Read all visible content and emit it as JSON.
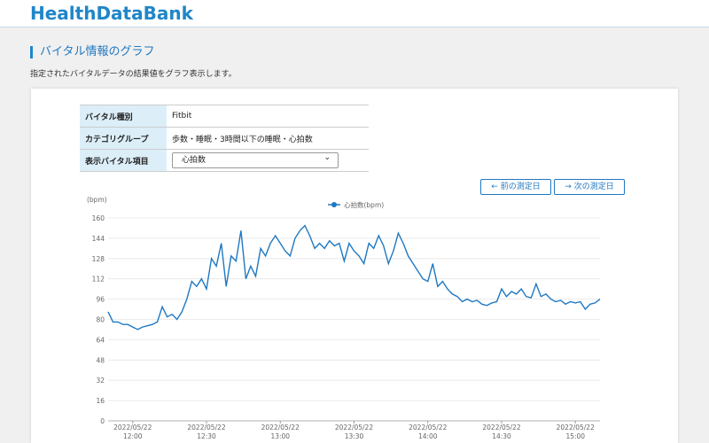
{
  "header": {
    "logo": "HealthDataBank"
  },
  "page": {
    "title": "バイタル情報のグラフ",
    "description": "指定されたバイタルデータの結果値をグラフ表示します。"
  },
  "table": {
    "rows": [
      [
        "バイタル種別",
        "Fitbit"
      ],
      [
        "カテゴリグループ",
        "歩数・睡眠・3時間以下の睡眠・心拍数"
      ],
      [
        "表示バイタル項目",
        "心拍数"
      ]
    ]
  },
  "buttons": {
    "prev": "← 前の測定日",
    "next": "→ 次の測定日"
  },
  "chart_data": {
    "type": "line",
    "y_label": "(bpm)",
    "grid": true,
    "ylim": [
      0,
      160
    ],
    "yticks": [
      0,
      16,
      32,
      48,
      64,
      80,
      96,
      112,
      128,
      144,
      160
    ],
    "xlim": [
      "2022/05/22 11:50",
      "2022/05/22 15:10"
    ],
    "xticks": [
      "2022/05/22 12:00",
      "2022/05/22 12:30",
      "2022/05/22 13:00",
      "2022/05/22 13:30",
      "2022/05/22 14:00",
      "2022/05/22 14:30",
      "2022/05/22 15:00"
    ],
    "x": [
      "2022/05/22 11:50",
      "2022/05/22 11:52",
      "2022/05/22 11:54",
      "2022/05/22 11:56",
      "2022/05/22 11:58",
      "2022/05/22 12:00",
      "2022/05/22 12:02",
      "2022/05/22 12:04",
      "2022/05/22 12:06",
      "2022/05/22 12:08",
      "2022/05/22 12:10",
      "2022/05/22 12:12",
      "2022/05/22 12:14",
      "2022/05/22 12:16",
      "2022/05/22 12:18",
      "2022/05/22 12:20",
      "2022/05/22 12:22",
      "2022/05/22 12:24",
      "2022/05/22 12:26",
      "2022/05/22 12:28",
      "2022/05/22 12:30",
      "2022/05/22 12:32",
      "2022/05/22 12:34",
      "2022/05/22 12:36",
      "2022/05/22 12:38",
      "2022/05/22 12:40",
      "2022/05/22 12:42",
      "2022/05/22 12:44",
      "2022/05/22 12:46",
      "2022/05/22 12:48",
      "2022/05/22 12:50",
      "2022/05/22 12:52",
      "2022/05/22 12:54",
      "2022/05/22 12:56",
      "2022/05/22 12:58",
      "2022/05/22 13:00",
      "2022/05/22 13:02",
      "2022/05/22 13:04",
      "2022/05/22 13:06",
      "2022/05/22 13:08",
      "2022/05/22 13:10",
      "2022/05/22 13:12",
      "2022/05/22 13:14",
      "2022/05/22 13:16",
      "2022/05/22 13:18",
      "2022/05/22 13:20",
      "2022/05/22 13:22",
      "2022/05/22 13:24",
      "2022/05/22 13:26",
      "2022/05/22 13:28",
      "2022/05/22 13:30",
      "2022/05/22 13:32",
      "2022/05/22 13:34",
      "2022/05/22 13:36",
      "2022/05/22 13:38",
      "2022/05/22 13:40",
      "2022/05/22 13:42",
      "2022/05/22 13:44",
      "2022/05/22 13:46",
      "2022/05/22 13:48",
      "2022/05/22 13:50",
      "2022/05/22 13:52",
      "2022/05/22 13:54",
      "2022/05/22 13:56",
      "2022/05/22 13:58",
      "2022/05/22 14:00",
      "2022/05/22 14:02",
      "2022/05/22 14:04",
      "2022/05/22 14:06",
      "2022/05/22 14:08",
      "2022/05/22 14:10",
      "2022/05/22 14:12",
      "2022/05/22 14:14",
      "2022/05/22 14:16",
      "2022/05/22 14:18",
      "2022/05/22 14:20",
      "2022/05/22 14:22",
      "2022/05/22 14:24",
      "2022/05/22 14:26",
      "2022/05/22 14:28",
      "2022/05/22 14:30",
      "2022/05/22 14:32",
      "2022/05/22 14:34",
      "2022/05/22 14:36",
      "2022/05/22 14:38",
      "2022/05/22 14:40",
      "2022/05/22 14:42",
      "2022/05/22 14:44",
      "2022/05/22 14:46",
      "2022/05/22 14:48",
      "2022/05/22 14:50",
      "2022/05/22 14:52",
      "2022/05/22 14:54",
      "2022/05/22 14:56",
      "2022/05/22 14:58",
      "2022/05/22 15:00",
      "2022/05/22 15:02",
      "2022/05/22 15:04",
      "2022/05/22 15:06",
      "2022/05/22 15:08",
      "2022/05/22 15:10"
    ],
    "series": [
      {
        "name": "心拍数(bpm)",
        "color": "#1f78c1",
        "values": [
          86,
          78,
          78,
          76,
          76,
          74,
          72,
          74,
          75,
          76,
          78,
          90,
          82,
          84,
          80,
          86,
          96,
          110,
          106,
          112,
          104,
          128,
          122,
          140,
          106,
          130,
          126,
          150,
          112,
          122,
          114,
          136,
          130,
          140,
          146,
          140,
          134,
          130,
          144,
          150,
          154,
          146,
          136,
          140,
          136,
          142,
          138,
          140,
          126,
          140,
          134,
          130,
          124,
          140,
          136,
          146,
          138,
          124,
          134,
          148,
          140,
          130,
          124,
          118,
          112,
          110,
          124,
          106,
          110,
          104,
          100,
          98,
          94,
          96,
          94,
          95,
          92,
          91,
          93,
          94,
          104,
          98,
          102,
          100,
          104,
          98,
          97,
          108,
          98,
          100,
          96,
          94,
          95,
          92,
          94,
          93,
          94,
          88,
          92,
          93,
          96
        ]
      }
    ]
  }
}
